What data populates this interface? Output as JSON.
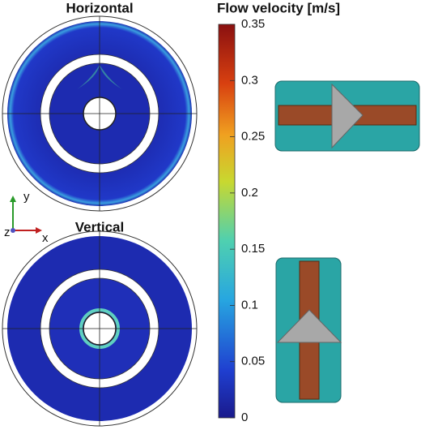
{
  "panels": [
    {
      "title": "Horizontal"
    },
    {
      "title": "Vertical"
    }
  ],
  "axes_triad": {
    "y": "y",
    "z": "z",
    "x": "x"
  },
  "colorbar": {
    "title": "Flow velocity [m/s]",
    "lim": [
      0,
      0.35
    ],
    "ticks": [
      0,
      0.05,
      0.1,
      0.15,
      0.2,
      0.25,
      0.3,
      0.35
    ]
  }
}
